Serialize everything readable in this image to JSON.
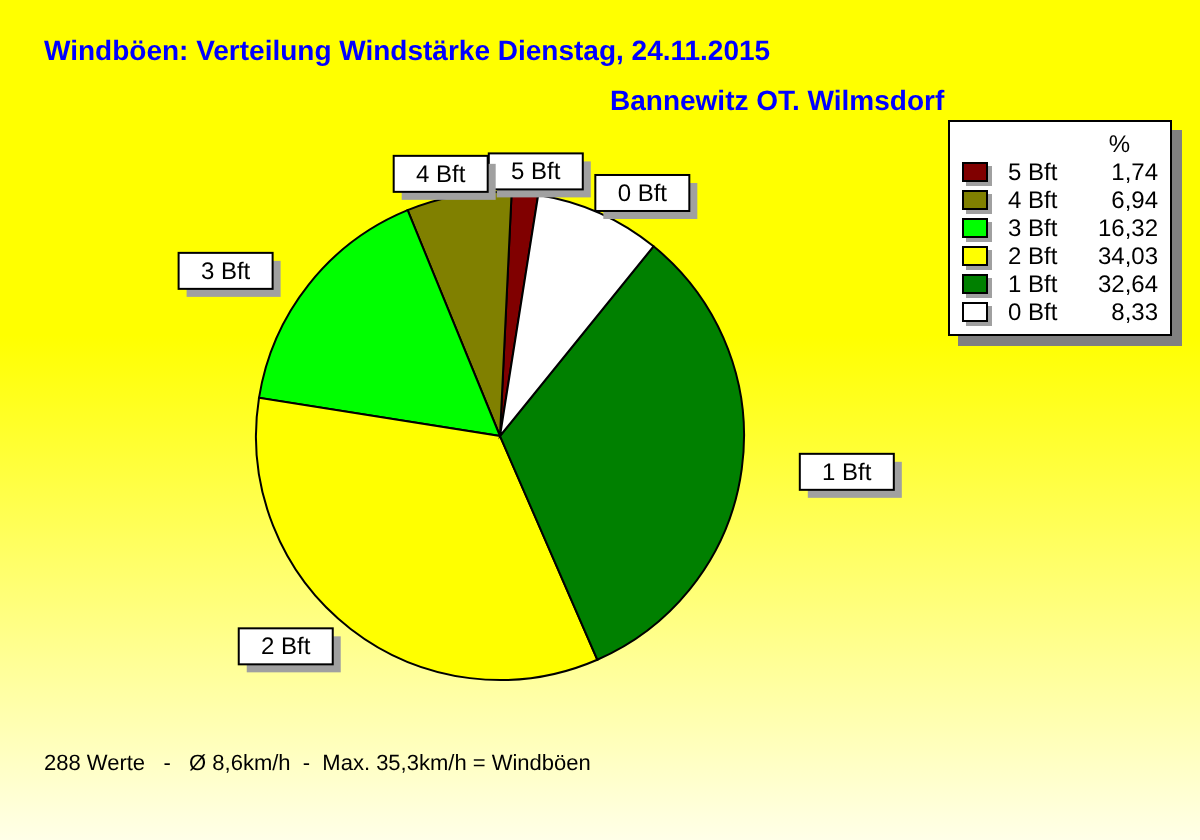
{
  "chart_data": {
    "type": "pie",
    "title": "Windböen: Verteilung Windstärke  Dienstag, 24.11.2015",
    "subtitle": "Bannewitz OT. Wilmsdorf",
    "legend_title": "%",
    "categories": [
      "5 Bft",
      "4 Bft",
      "3 Bft",
      "2 Bft",
      "1 Bft",
      "0 Bft"
    ],
    "values": [
      1.74,
      6.94,
      16.32,
      34.03,
      32.64,
      8.33
    ],
    "value_labels": [
      "1,74",
      "6,94",
      "16,32",
      "34,03",
      "32,64",
      "8,33"
    ],
    "colors": [
      "#800000",
      "#808000",
      "#00ff00",
      "#ffff00",
      "#008000",
      "#ffffff"
    ],
    "legend": "top right",
    "annotations": [
      "288 Werte   -   Ø 8,6km/h  -  Max. 35,3km/h = Windböen"
    ]
  }
}
